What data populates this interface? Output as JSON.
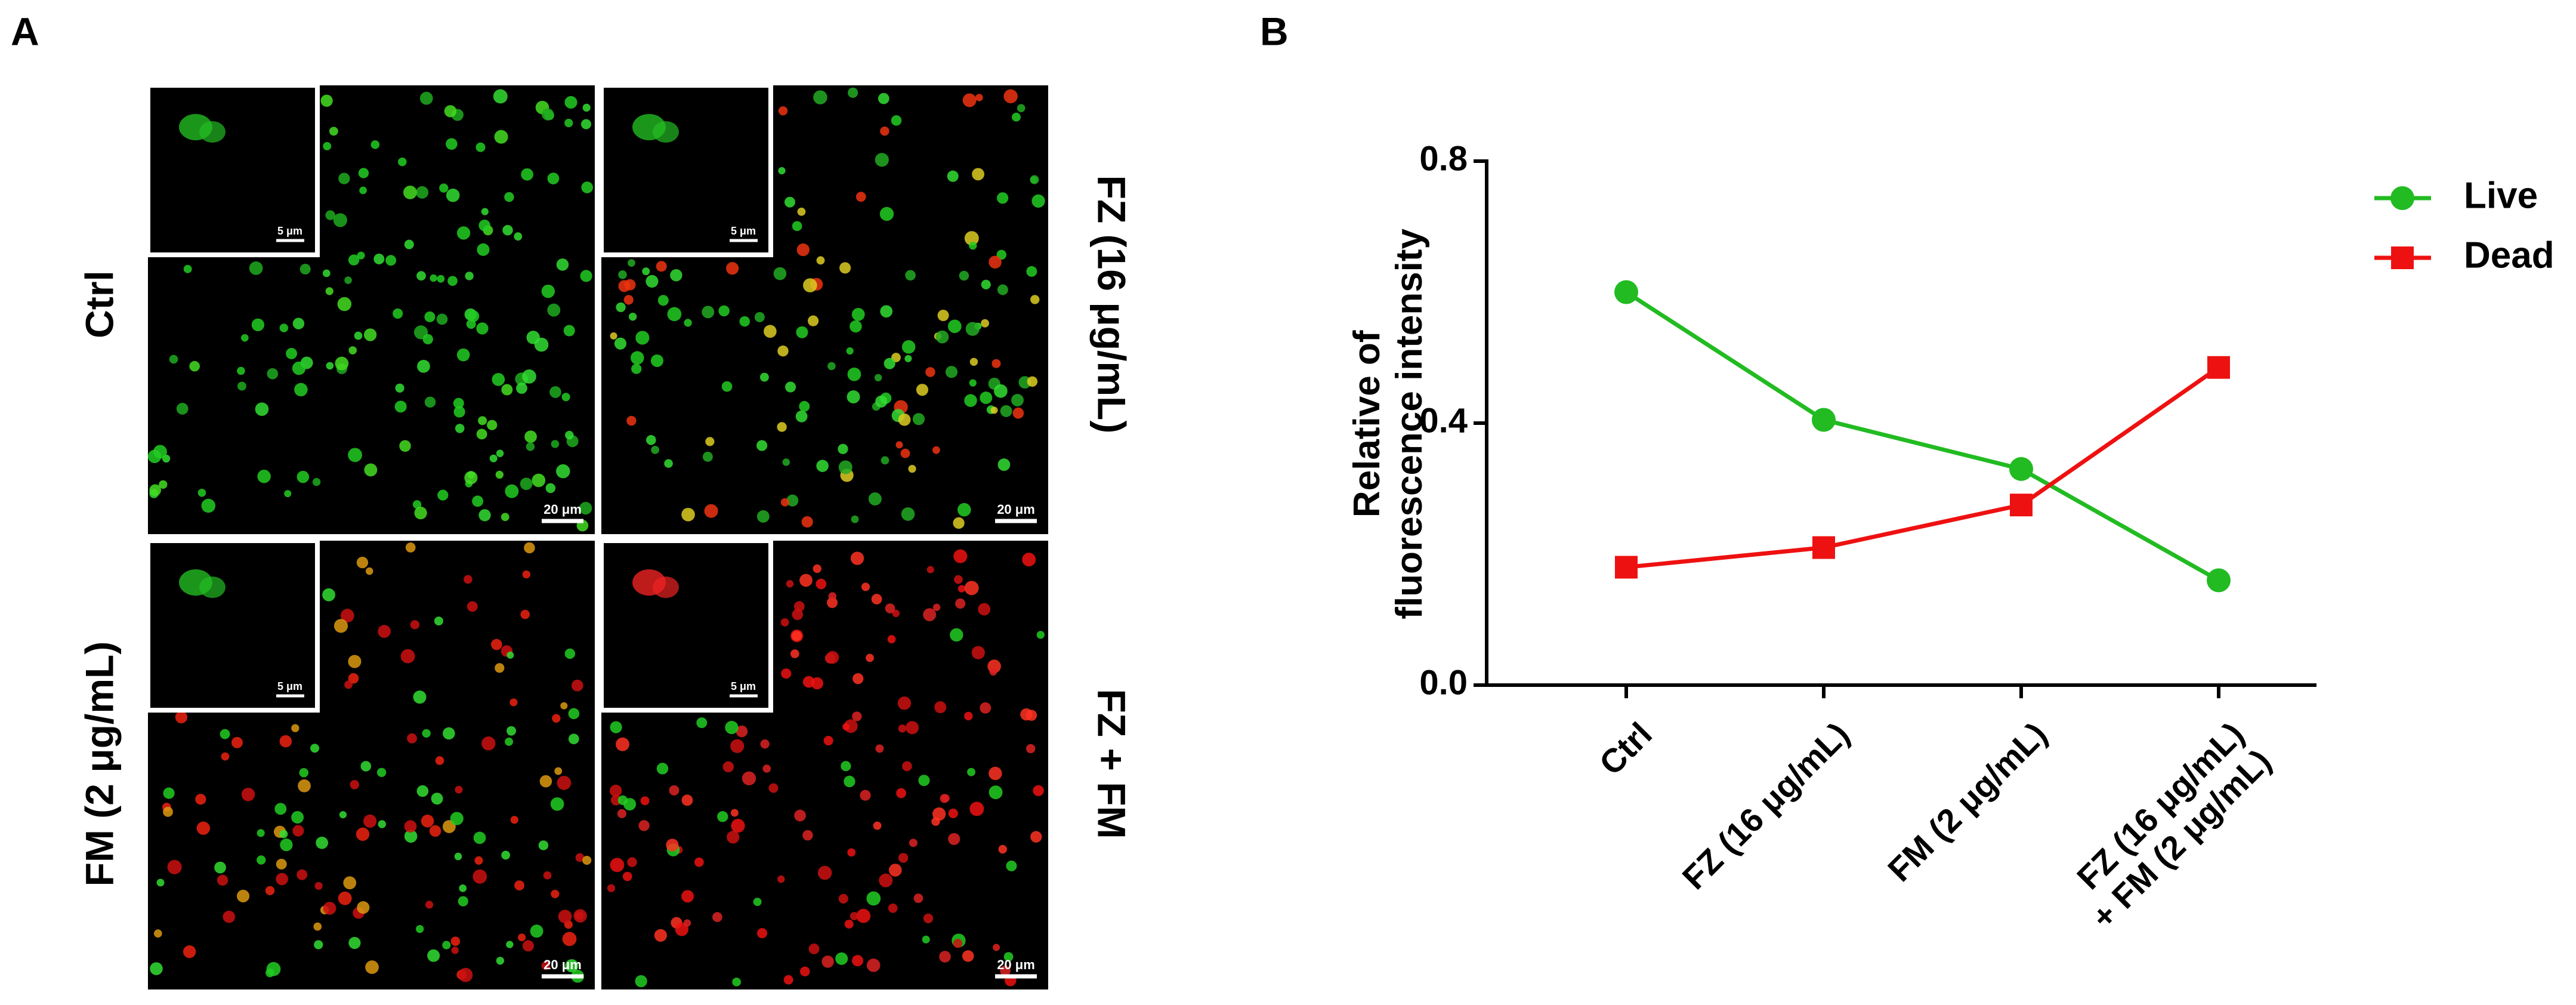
{
  "panel_a": {
    "label": "A",
    "rows": [
      "Ctrl",
      "FM (2 μg/mL)"
    ],
    "columns": [
      "FZ (16 μg/mL)",
      "FZ + FM"
    ],
    "scale_bar": "20 μm",
    "inset_scale_bar": "5 μm"
  },
  "chart_data": {
    "type": "line",
    "panel_label": "B",
    "y_label": "Relative of\nfluorescence intensity",
    "categories": [
      "Ctrl",
      "FZ (16 μg/mL)",
      "FM (2 μg/mL)",
      "FZ (16 μg/mL)\n+ FM (2 μg/mL)"
    ],
    "series": [
      {
        "name": "Live",
        "color": "#22bb22",
        "marker": "circle",
        "values": [
          0.6,
          0.405,
          0.33,
          0.16
        ]
      },
      {
        "name": "Dead",
        "color": "#ee1111",
        "marker": "square",
        "values": [
          0.18,
          0.21,
          0.275,
          0.485
        ]
      }
    ],
    "ylim": [
      0,
      0.8
    ],
    "yticks": [
      {
        "value": 0,
        "label": "0.0"
      },
      0.4,
      0.8
    ],
    "grid": false,
    "legend": "upper right"
  }
}
